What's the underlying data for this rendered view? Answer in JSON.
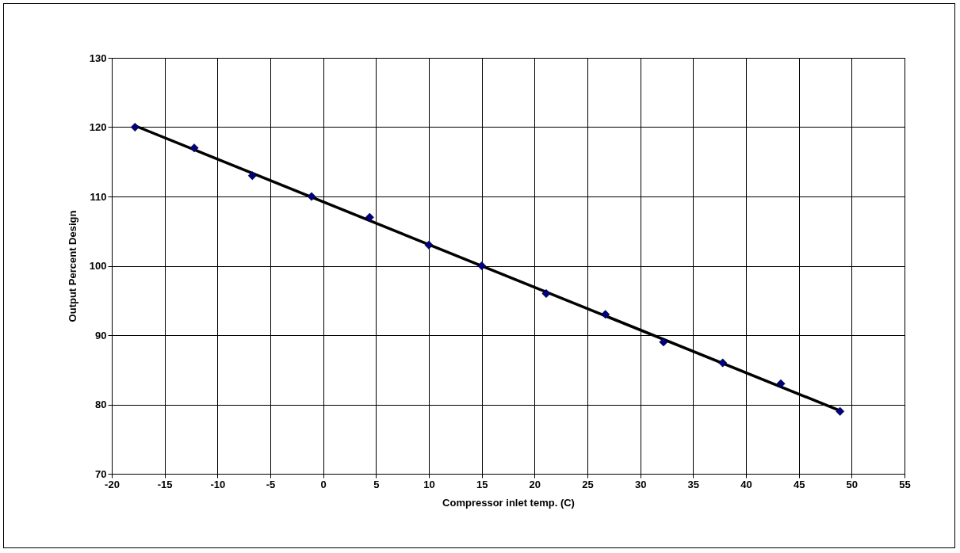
{
  "chart_data": {
    "type": "scatter",
    "xlabel": "Compressor inlet temp. (C)",
    "ylabel": "Output Percent Design",
    "series": [
      {
        "type": "line",
        "color": "#000000",
        "x": [
          -17.8,
          48.9
        ],
        "values": [
          120.2,
          79.1
        ]
      },
      {
        "color": "#000080",
        "marker": "diamond",
        "x": [
          -17.8,
          -12.2,
          -6.7,
          -1.1,
          4.4,
          10,
          15,
          21.1,
          26.7,
          32.2,
          37.8,
          43.3,
          48.9
        ],
        "values": [
          120,
          117,
          113,
          110,
          107,
          103,
          100,
          96,
          93,
          89,
          86,
          83,
          79
        ]
      }
    ],
    "xlim": [
      -20,
      55
    ],
    "xticks": [
      -20,
      -15,
      -10,
      -5,
      0,
      5,
      10,
      15,
      20,
      25,
      30,
      35,
      40,
      45,
      50,
      55
    ],
    "ylim": [
      70,
      130
    ],
    "yticks": [
      70,
      80,
      90,
      100,
      110,
      120,
      130
    ],
    "grid": true,
    "line_style": "solid"
  }
}
